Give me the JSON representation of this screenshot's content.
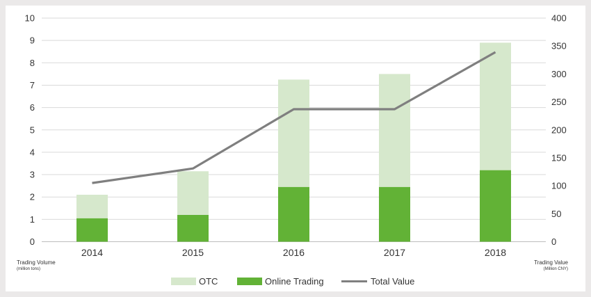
{
  "chart_data": {
    "type": "bar",
    "stacked": true,
    "categories": [
      "2014",
      "2015",
      "2016",
      "2017",
      "2018"
    ],
    "series": [
      {
        "name": "Online Trading",
        "kind": "bar",
        "axis": "left",
        "color": "#62b236",
        "values": [
          1.05,
          1.2,
          2.45,
          2.45,
          3.2
        ]
      },
      {
        "name": "OTC",
        "kind": "bar",
        "axis": "left",
        "color": "#d6e8cc",
        "values": [
          1.05,
          1.95,
          4.8,
          5.05,
          5.7
        ]
      },
      {
        "name": "Total Value",
        "kind": "line",
        "axis": "right",
        "color": "#7f7f7f",
        "values": [
          105,
          131,
          237,
          237,
          339
        ]
      }
    ],
    "ylabel_left": "Trading Volume",
    "ylabel_left_unit": "(million tons)",
    "ylabel_right": "Trading Value",
    "ylabel_right_unit": "(Million CNY)",
    "ylim_left": [
      0,
      10
    ],
    "ylim_right": [
      0,
      400
    ],
    "yticks_left": [
      "0",
      "1",
      "2",
      "3",
      "4",
      "5",
      "6",
      "7",
      "8",
      "9",
      "10"
    ],
    "yticks_right": [
      "0",
      "50",
      "100",
      "150",
      "200",
      "250",
      "300",
      "350",
      "400"
    ],
    "grid": true,
    "legend_position": "bottom",
    "legend": [
      "OTC",
      "Online Trading",
      "Total Value"
    ]
  }
}
